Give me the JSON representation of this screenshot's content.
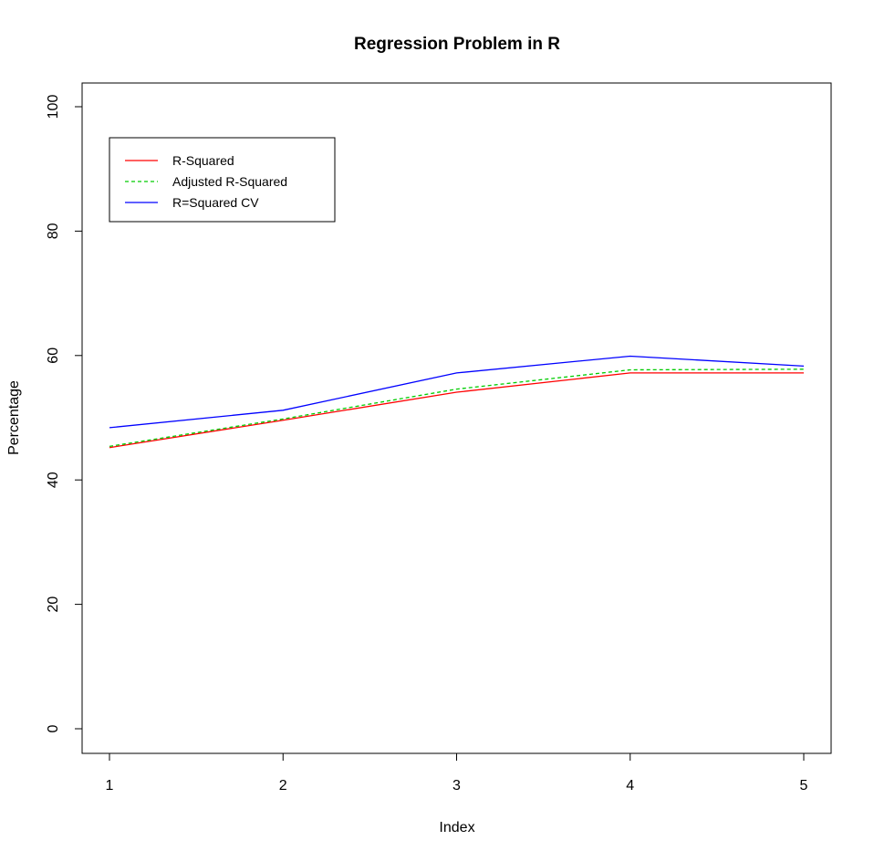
{
  "chart_data": {
    "type": "line",
    "title": "Regression Problem in R",
    "xlabel": "Index",
    "ylabel": "Percentage",
    "x": [
      1,
      2,
      3,
      4,
      5
    ],
    "xlim": [
      1,
      5
    ],
    "ylim": [
      0,
      100
    ],
    "x_ticks": [
      "1",
      "2",
      "3",
      "4",
      "5"
    ],
    "y_ticks": [
      "0",
      "20",
      "40",
      "60",
      "80",
      "100"
    ],
    "grid": false,
    "legend_position": "top-left",
    "series": [
      {
        "name": "R-Squared",
        "values": [
          45.2,
          49.6,
          54.1,
          57.2,
          57.2
        ],
        "color": "#ff0000",
        "line_style": "solid"
      },
      {
        "name": "Adjusted R-Squared",
        "values": [
          45.4,
          49.8,
          54.6,
          57.7,
          57.8
        ],
        "color": "#00cc00",
        "line_style": "dashed"
      },
      {
        "name": "R=Squared CV",
        "values": [
          48.4,
          51.2,
          57.2,
          59.9,
          58.3
        ],
        "color": "#0000ff",
        "line_style": "solid"
      }
    ]
  }
}
